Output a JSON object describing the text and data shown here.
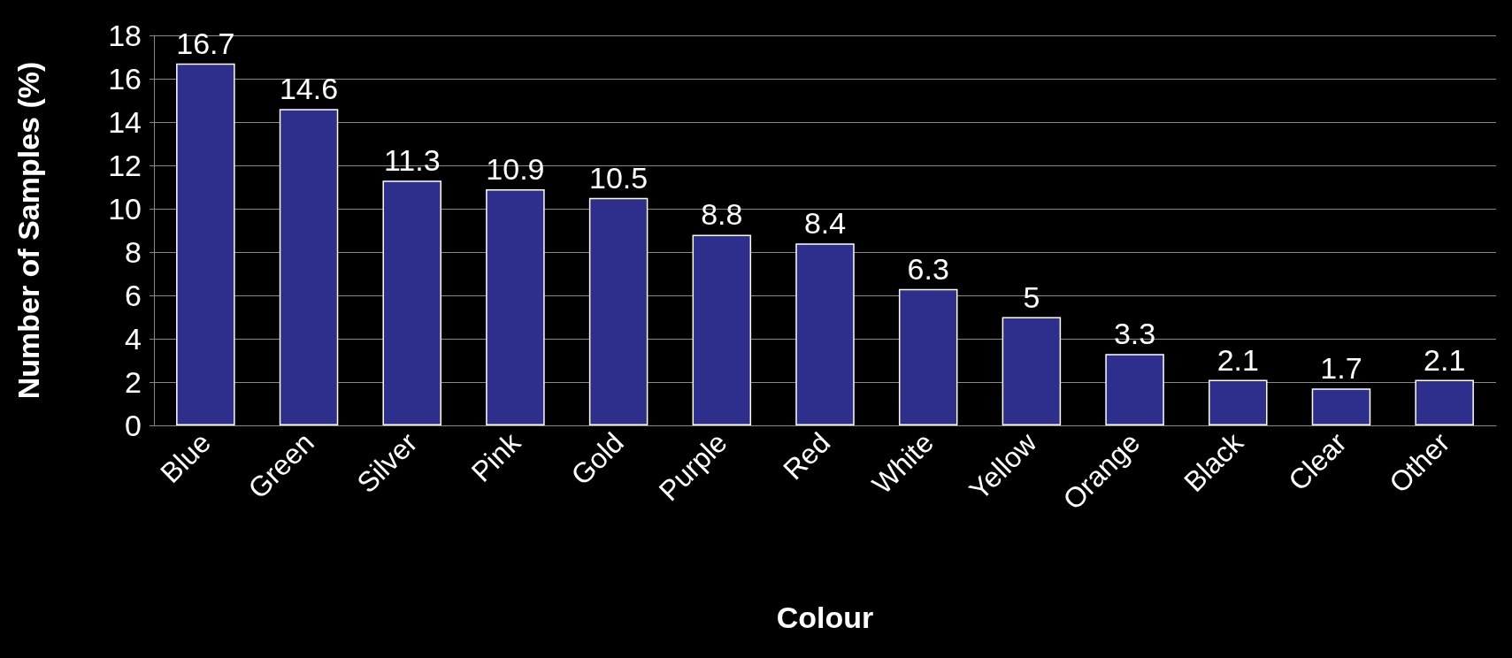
{
  "chart_data": {
    "type": "bar",
    "xlabel": "Colour",
    "ylabel": "Number of Samples (%)",
    "categories": [
      "Blue",
      "Green",
      "Silver",
      "Pink",
      "Gold",
      "Purple",
      "Red",
      "White",
      "Yellow",
      "Orange",
      "Black",
      "Clear",
      "Other"
    ],
    "values": [
      16.7,
      14.6,
      11.3,
      10.9,
      10.5,
      8.8,
      8.4,
      6.3,
      5,
      3.3,
      2.1,
      1.7,
      2.1
    ],
    "color": "#2e2e8c",
    "ylim": [
      0,
      18
    ],
    "yticks": [
      0,
      2,
      4,
      6,
      8,
      10,
      12,
      14,
      16,
      18
    ],
    "grid": "y",
    "data_labels": true
  }
}
